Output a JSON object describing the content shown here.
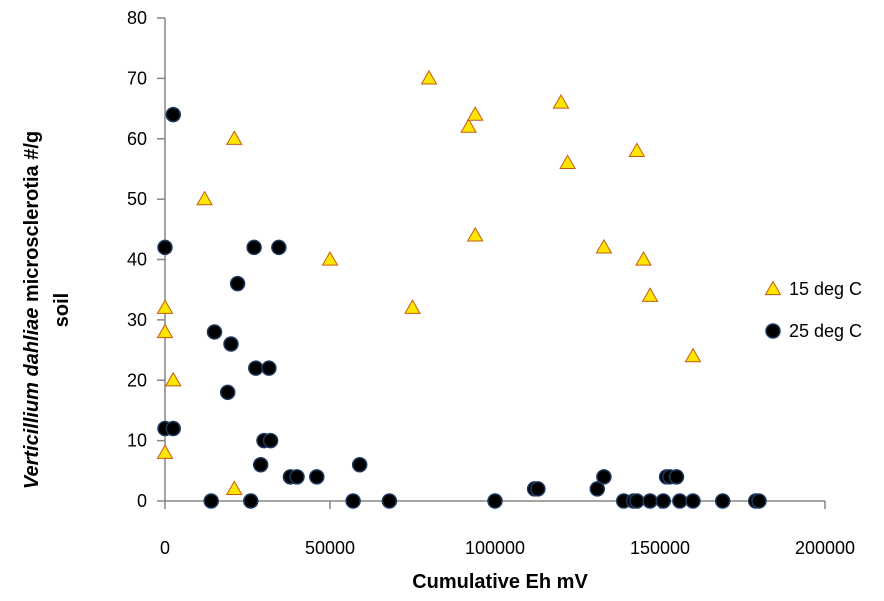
{
  "chart_data": {
    "type": "scatter",
    "title": "",
    "xlabel": "Cumulative Eh mV",
    "ylabel": {
      "part1": "Verticillium dahliae",
      "part2": " microsclerotia  #/g",
      "line2": "soil"
    },
    "xlim": [
      0,
      200000
    ],
    "ylim": [
      0,
      80
    ],
    "xticks": [
      0,
      50000,
      100000,
      150000,
      200000
    ],
    "yticks": [
      0,
      10,
      20,
      30,
      40,
      50,
      60,
      70,
      80
    ],
    "grid": false,
    "legend_position": "right",
    "series": [
      {
        "name": "15 deg C",
        "marker": "triangle",
        "color": "#FFE600",
        "edge_color": "#C55A11",
        "points": [
          [
            0,
            32
          ],
          [
            0,
            28
          ],
          [
            0,
            8
          ],
          [
            2500,
            20
          ],
          [
            12000,
            50
          ],
          [
            21000,
            60
          ],
          [
            21000,
            2
          ],
          [
            50000,
            40
          ],
          [
            75000,
            32
          ],
          [
            80000,
            70
          ],
          [
            92000,
            62
          ],
          [
            94000,
            64
          ],
          [
            94000,
            44
          ],
          [
            120000,
            66
          ],
          [
            122000,
            56
          ],
          [
            133000,
            42
          ],
          [
            143000,
            58
          ],
          [
            145000,
            40
          ],
          [
            147000,
            34
          ],
          [
            160000,
            24
          ]
        ]
      },
      {
        "name": "25 deg C",
        "marker": "circle",
        "color": "#000000",
        "edge_color": "#1F3A5F",
        "points": [
          [
            2500,
            64
          ],
          [
            0,
            42
          ],
          [
            0,
            12
          ],
          [
            2500,
            12
          ],
          [
            14000,
            0
          ],
          [
            15000,
            28
          ],
          [
            19000,
            18
          ],
          [
            20000,
            26
          ],
          [
            22000,
            36
          ],
          [
            26000,
            0
          ],
          [
            27000,
            42
          ],
          [
            27500,
            22
          ],
          [
            29000,
            6
          ],
          [
            30000,
            10
          ],
          [
            31500,
            22
          ],
          [
            32000,
            10
          ],
          [
            34500,
            42
          ],
          [
            38000,
            4
          ],
          [
            40000,
            4
          ],
          [
            46000,
            4
          ],
          [
            57000,
            0
          ],
          [
            59000,
            6
          ],
          [
            68000,
            0
          ],
          [
            100000,
            0
          ],
          [
            112000,
            2
          ],
          [
            113000,
            2
          ],
          [
            131000,
            2
          ],
          [
            133000,
            4
          ],
          [
            139000,
            0
          ],
          [
            142000,
            0
          ],
          [
            143000,
            0
          ],
          [
            147000,
            0
          ],
          [
            151000,
            0
          ],
          [
            152000,
            4
          ],
          [
            153000,
            4
          ],
          [
            155000,
            4
          ],
          [
            156000,
            0
          ],
          [
            160000,
            0
          ],
          [
            169000,
            0
          ],
          [
            179000,
            0
          ],
          [
            180000,
            0
          ]
        ]
      }
    ]
  }
}
